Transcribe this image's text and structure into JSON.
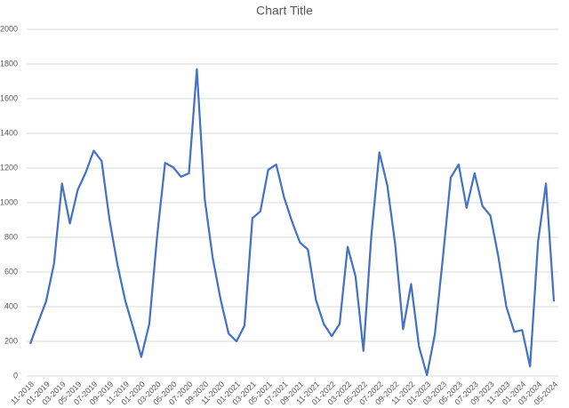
{
  "chart_data": {
    "type": "line",
    "title": "Chart Title",
    "categories": [
      "11-2018",
      null,
      "01-2019",
      null,
      "03-2019",
      null,
      "05-2019",
      null,
      "07-2019",
      null,
      "09-2019",
      null,
      "11-2019",
      null,
      "01-2020",
      null,
      "03-2020",
      null,
      "05-2020",
      null,
      "07-2020",
      null,
      "09-2020",
      null,
      "11-2020",
      null,
      "01-2021",
      null,
      "03-2021",
      null,
      "05-2021",
      null,
      "07-2021",
      null,
      "09-2021",
      null,
      "11-2021",
      null,
      "01-2022",
      null,
      "03-2022",
      null,
      "05-2022",
      null,
      "07-2022",
      null,
      "09-2022",
      null,
      "11-2022",
      null,
      "01-2023",
      null,
      "03-2023",
      null,
      "05-2023",
      null,
      "07-2023",
      null,
      "09-2023",
      null,
      "11-2023",
      null,
      "01-2024",
      null,
      "03-2024",
      null,
      "05-2024"
    ],
    "values": [
      185,
      310,
      430,
      650,
      1110,
      880,
      1075,
      1175,
      1300,
      1240,
      900,
      640,
      430,
      275,
      110,
      300,
      810,
      1230,
      1205,
      1150,
      1170,
      1770,
      1020,
      680,
      440,
      245,
      200,
      290,
      910,
      950,
      1190,
      1220,
      1030,
      890,
      770,
      730,
      440,
      300,
      230,
      300,
      745,
      575,
      145,
      810,
      1290,
      1100,
      760,
      270,
      530,
      170,
      5,
      240,
      680,
      1145,
      1220,
      970,
      1170,
      980,
      925,
      690,
      400,
      255,
      265,
      55,
      775,
      1110,
      430
    ],
    "color": "#4472c4",
    "ylim": [
      0,
      2000
    ],
    "yticks": [
      0,
      200,
      400,
      600,
      800,
      1000,
      1200,
      1400,
      1600,
      1800,
      2000
    ],
    "grid": true
  }
}
